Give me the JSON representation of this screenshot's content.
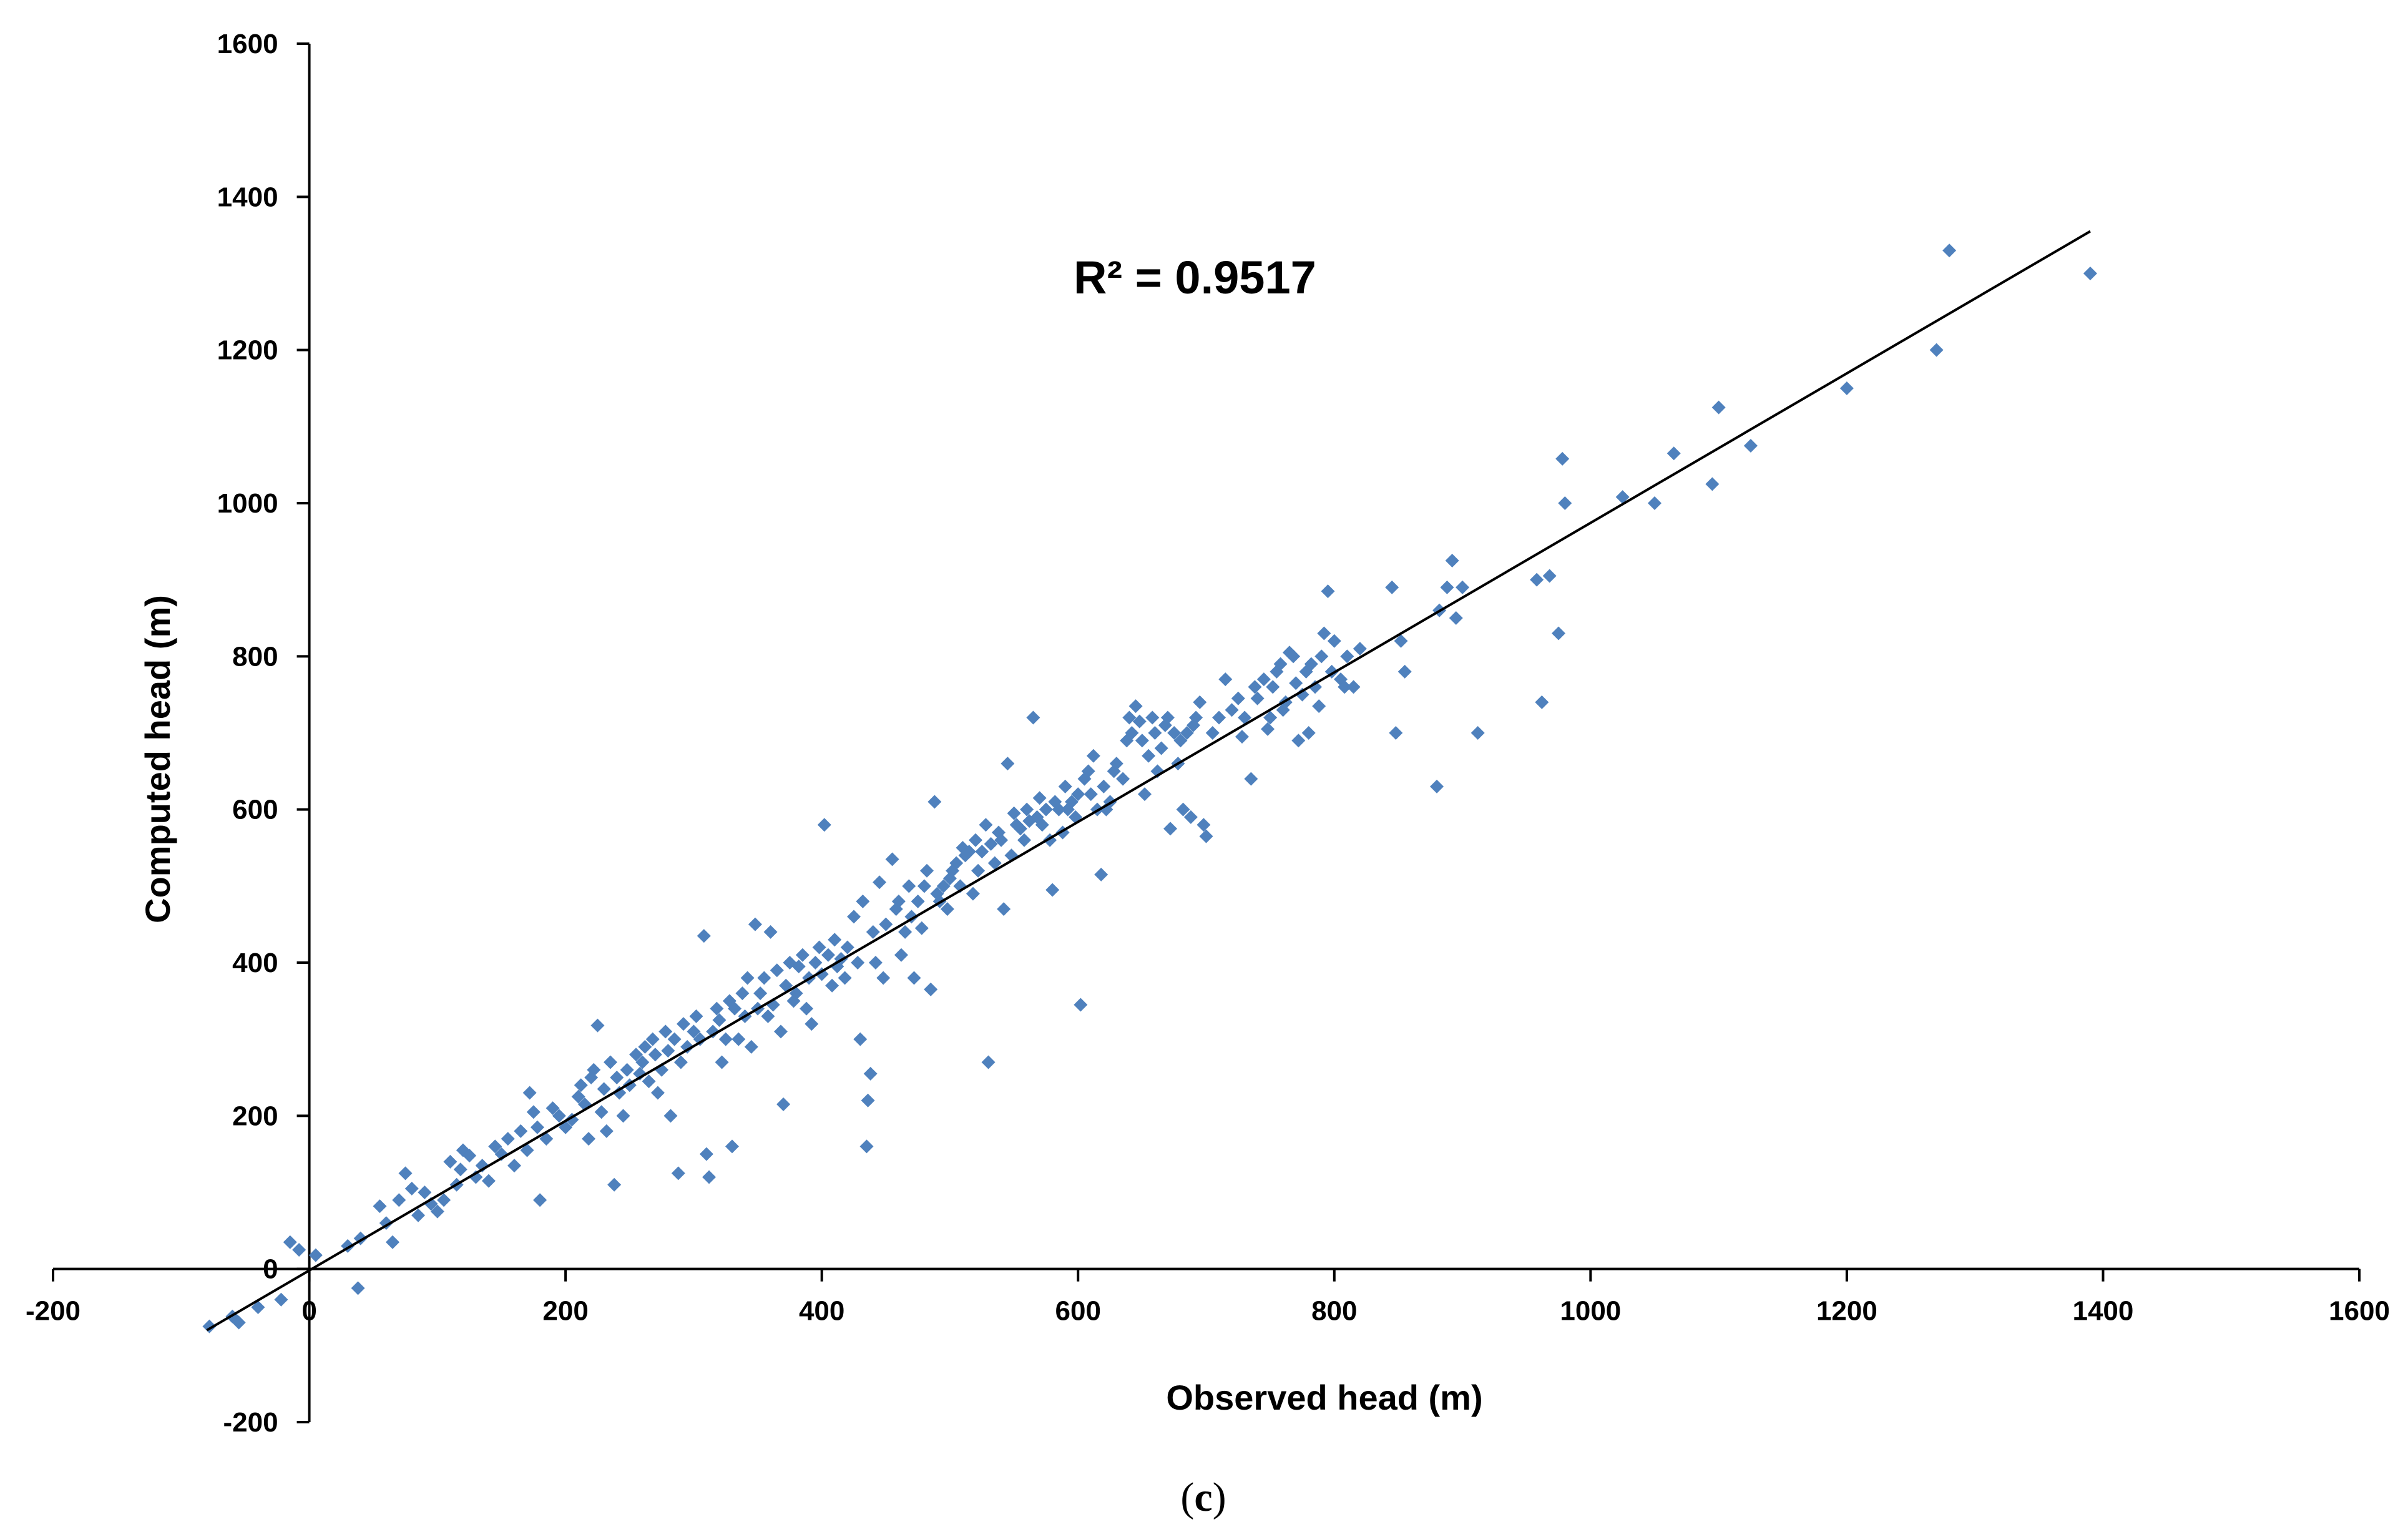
{
  "chart_data": {
    "type": "scatter",
    "xlabel": "Observed head (m)",
    "ylabel": "Computed head (m)",
    "xlim": [
      -200,
      1600
    ],
    "ylim": [
      -200,
      1600
    ],
    "x_ticks": [
      -200,
      0,
      200,
      400,
      600,
      800,
      1000,
      1200,
      1400,
      1600
    ],
    "y_ticks": [
      -200,
      0,
      200,
      400,
      600,
      800,
      1000,
      1200,
      1400,
      1600
    ],
    "grid": false,
    "legend": "none",
    "annotation": "R² = 0.9517",
    "caption": {
      "open": "(",
      "letter": "c",
      "close": ")"
    },
    "marker_color": "#4F81BD",
    "trendline": {
      "x": [
        -80,
        1390
      ],
      "y": [
        -80,
        1355
      ],
      "color": "#000000"
    },
    "series": [
      {
        "marker": "diamond",
        "points": [
          [
            -78,
            -75
          ],
          [
            -60,
            -62
          ],
          [
            -55,
            -70
          ],
          [
            -40,
            -50
          ],
          [
            -22,
            -40
          ],
          [
            -15,
            35
          ],
          [
            -8,
            25
          ],
          [
            5,
            18
          ],
          [
            30,
            30
          ],
          [
            38,
            -25
          ],
          [
            40,
            40
          ],
          [
            55,
            82
          ],
          [
            60,
            60
          ],
          [
            65,
            35
          ],
          [
            70,
            90
          ],
          [
            75,
            125
          ],
          [
            80,
            105
          ],
          [
            85,
            70
          ],
          [
            90,
            100
          ],
          [
            95,
            85
          ],
          [
            100,
            75
          ],
          [
            105,
            90
          ],
          [
            110,
            140
          ],
          [
            115,
            110
          ],
          [
            118,
            130
          ],
          [
            120,
            155
          ],
          [
            125,
            148
          ],
          [
            130,
            120
          ],
          [
            135,
            135
          ],
          [
            140,
            115
          ],
          [
            145,
            160
          ],
          [
            150,
            150
          ],
          [
            155,
            170
          ],
          [
            160,
            135
          ],
          [
            165,
            180
          ],
          [
            170,
            155
          ],
          [
            172,
            230
          ],
          [
            175,
            205
          ],
          [
            178,
            185
          ],
          [
            180,
            90
          ],
          [
            185,
            170
          ],
          [
            190,
            210
          ],
          [
            195,
            200
          ],
          [
            200,
            185
          ],
          [
            205,
            195
          ],
          [
            210,
            225
          ],
          [
            212,
            240
          ],
          [
            215,
            215
          ],
          [
            218,
            170
          ],
          [
            220,
            250
          ],
          [
            222,
            260
          ],
          [
            225,
            318
          ],
          [
            228,
            205
          ],
          [
            230,
            235
          ],
          [
            232,
            180
          ],
          [
            235,
            270
          ],
          [
            238,
            110
          ],
          [
            240,
            250
          ],
          [
            242,
            230
          ],
          [
            245,
            200
          ],
          [
            248,
            260
          ],
          [
            250,
            240
          ],
          [
            255,
            280
          ],
          [
            258,
            255
          ],
          [
            260,
            270
          ],
          [
            262,
            290
          ],
          [
            265,
            245
          ],
          [
            268,
            300
          ],
          [
            270,
            280
          ],
          [
            272,
            230
          ],
          [
            275,
            260
          ],
          [
            278,
            310
          ],
          [
            280,
            285
          ],
          [
            282,
            200
          ],
          [
            285,
            300
          ],
          [
            288,
            125
          ],
          [
            290,
            270
          ],
          [
            292,
            320
          ],
          [
            295,
            290
          ],
          [
            300,
            310
          ],
          [
            302,
            330
          ],
          [
            305,
            300
          ],
          [
            308,
            435
          ],
          [
            310,
            150
          ],
          [
            312,
            120
          ],
          [
            315,
            310
          ],
          [
            318,
            340
          ],
          [
            320,
            325
          ],
          [
            322,
            270
          ],
          [
            325,
            300
          ],
          [
            328,
            350
          ],
          [
            330,
            160
          ],
          [
            332,
            340
          ],
          [
            335,
            300
          ],
          [
            338,
            360
          ],
          [
            340,
            330
          ],
          [
            342,
            380
          ],
          [
            345,
            290
          ],
          [
            348,
            450
          ],
          [
            350,
            340
          ],
          [
            352,
            360
          ],
          [
            355,
            380
          ],
          [
            358,
            330
          ],
          [
            360,
            440
          ],
          [
            362,
            345
          ],
          [
            365,
            390
          ],
          [
            368,
            310
          ],
          [
            370,
            215
          ],
          [
            372,
            370
          ],
          [
            375,
            400
          ],
          [
            378,
            350
          ],
          [
            380,
            360
          ],
          [
            382,
            395
          ],
          [
            385,
            410
          ],
          [
            388,
            340
          ],
          [
            390,
            380
          ],
          [
            392,
            320
          ],
          [
            395,
            400
          ],
          [
            398,
            420
          ],
          [
            400,
            385
          ],
          [
            402,
            580
          ],
          [
            405,
            410
          ],
          [
            408,
            370
          ],
          [
            410,
            430
          ],
          [
            412,
            395
          ],
          [
            415,
            405
          ],
          [
            418,
            380
          ],
          [
            420,
            420
          ],
          [
            425,
            460
          ],
          [
            428,
            400
          ],
          [
            430,
            300
          ],
          [
            432,
            480
          ],
          [
            435,
            160
          ],
          [
            436,
            220
          ],
          [
            438,
            255
          ],
          [
            440,
            440
          ],
          [
            442,
            400
          ],
          [
            445,
            505
          ],
          [
            448,
            380
          ],
          [
            450,
            450
          ],
          [
            455,
            535
          ],
          [
            458,
            470
          ],
          [
            460,
            480
          ],
          [
            462,
            410
          ],
          [
            465,
            440
          ],
          [
            468,
            500
          ],
          [
            470,
            460
          ],
          [
            472,
            380
          ],
          [
            475,
            480
          ],
          [
            478,
            445
          ],
          [
            480,
            500
          ],
          [
            482,
            520
          ],
          [
            485,
            365
          ],
          [
            488,
            610
          ],
          [
            490,
            490
          ],
          [
            492,
            480
          ],
          [
            495,
            500
          ],
          [
            498,
            470
          ],
          [
            500,
            510
          ],
          [
            502,
            520
          ],
          [
            505,
            530
          ],
          [
            508,
            500
          ],
          [
            510,
            550
          ],
          [
            512,
            540
          ],
          [
            515,
            545
          ],
          [
            518,
            490
          ],
          [
            520,
            560
          ],
          [
            522,
            520
          ],
          [
            525,
            545
          ],
          [
            528,
            580
          ],
          [
            530,
            270
          ],
          [
            532,
            555
          ],
          [
            535,
            530
          ],
          [
            538,
            570
          ],
          [
            540,
            560
          ],
          [
            542,
            470
          ],
          [
            545,
            660
          ],
          [
            548,
            540
          ],
          [
            550,
            595
          ],
          [
            552,
            580
          ],
          [
            555,
            575
          ],
          [
            558,
            560
          ],
          [
            560,
            600
          ],
          [
            562,
            585
          ],
          [
            565,
            720
          ],
          [
            568,
            590
          ],
          [
            570,
            615
          ],
          [
            572,
            580
          ],
          [
            575,
            600
          ],
          [
            578,
            560
          ],
          [
            580,
            495
          ],
          [
            582,
            610
          ],
          [
            585,
            600
          ],
          [
            588,
            570
          ],
          [
            590,
            630
          ],
          [
            592,
            600
          ],
          [
            595,
            610
          ],
          [
            598,
            590
          ],
          [
            600,
            620
          ],
          [
            602,
            345
          ],
          [
            605,
            640
          ],
          [
            608,
            650
          ],
          [
            610,
            620
          ],
          [
            612,
            670
          ],
          [
            615,
            600
          ],
          [
            618,
            515
          ],
          [
            620,
            630
          ],
          [
            622,
            600
          ],
          [
            625,
            610
          ],
          [
            628,
            650
          ],
          [
            630,
            660
          ],
          [
            635,
            640
          ],
          [
            638,
            690
          ],
          [
            640,
            720
          ],
          [
            642,
            700
          ],
          [
            645,
            735
          ],
          [
            648,
            715
          ],
          [
            650,
            690
          ],
          [
            652,
            620
          ],
          [
            655,
            670
          ],
          [
            658,
            720
          ],
          [
            660,
            700
          ],
          [
            662,
            650
          ],
          [
            665,
            680
          ],
          [
            668,
            710
          ],
          [
            670,
            720
          ],
          [
            672,
            575
          ],
          [
            675,
            700
          ],
          [
            678,
            660
          ],
          [
            680,
            690
          ],
          [
            682,
            600
          ],
          [
            685,
            700
          ],
          [
            688,
            590
          ],
          [
            690,
            710
          ],
          [
            692,
            720
          ],
          [
            695,
            740
          ],
          [
            698,
            580
          ],
          [
            700,
            565
          ],
          [
            705,
            700
          ],
          [
            710,
            720
          ],
          [
            715,
            770
          ],
          [
            720,
            730
          ],
          [
            725,
            745
          ],
          [
            728,
            695
          ],
          [
            730,
            720
          ],
          [
            735,
            640
          ],
          [
            738,
            760
          ],
          [
            740,
            745
          ],
          [
            745,
            770
          ],
          [
            748,
            705
          ],
          [
            750,
            720
          ],
          [
            752,
            760
          ],
          [
            755,
            780
          ],
          [
            758,
            790
          ],
          [
            760,
            730
          ],
          [
            762,
            740
          ],
          [
            765,
            805
          ],
          [
            768,
            800
          ],
          [
            770,
            765
          ],
          [
            772,
            690
          ],
          [
            775,
            750
          ],
          [
            778,
            780
          ],
          [
            780,
            700
          ],
          [
            782,
            790
          ],
          [
            785,
            760
          ],
          [
            788,
            735
          ],
          [
            790,
            800
          ],
          [
            792,
            830
          ],
          [
            795,
            885
          ],
          [
            798,
            780
          ],
          [
            800,
            820
          ],
          [
            805,
            770
          ],
          [
            808,
            760
          ],
          [
            810,
            800
          ],
          [
            815,
            760
          ],
          [
            820,
            810
          ],
          [
            845,
            890
          ],
          [
            848,
            700
          ],
          [
            852,
            820
          ],
          [
            855,
            780
          ],
          [
            880,
            630
          ],
          [
            882,
            860
          ],
          [
            888,
            890
          ],
          [
            892,
            925
          ],
          [
            895,
            850
          ],
          [
            900,
            890
          ],
          [
            912,
            700
          ],
          [
            958,
            900
          ],
          [
            962,
            740
          ],
          [
            968,
            905
          ],
          [
            975,
            830
          ],
          [
            978,
            1058
          ],
          [
            980,
            1000
          ],
          [
            1025,
            1008
          ],
          [
            1050,
            1000
          ],
          [
            1065,
            1065
          ],
          [
            1095,
            1025
          ],
          [
            1100,
            1125
          ],
          [
            1125,
            1075
          ],
          [
            1200,
            1150
          ],
          [
            1270,
            1200
          ],
          [
            1280,
            1330
          ],
          [
            1390,
            1300
          ]
        ]
      }
    ]
  }
}
